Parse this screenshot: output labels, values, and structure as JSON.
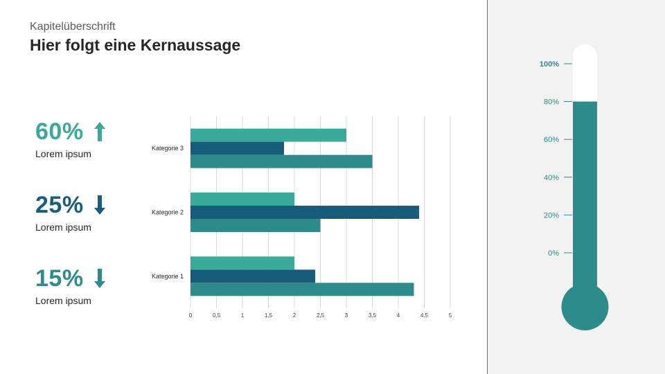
{
  "header": {
    "kicker": "Kapitelüberschrift",
    "headline": "Hier folgt eine Kernaussage"
  },
  "kpis": [
    {
      "value": "60%",
      "direction": "up",
      "label": "Lorem ipsum",
      "color": "#3aa89a",
      "icon": "arrow-up-icon"
    },
    {
      "value": "25%",
      "direction": "down",
      "label": "Lorem ipsum",
      "color": "#1a5c7c",
      "icon": "arrow-down-icon"
    },
    {
      "value": "15%",
      "direction": "down",
      "label": "Lorem ipsum",
      "color": "#2e8b8c",
      "icon": "arrow-down-icon"
    }
  ],
  "chart_data": {
    "type": "bar",
    "orientation": "horizontal",
    "categories": [
      "Kategorie 1",
      "Kategorie 2",
      "Kategorie 3"
    ],
    "series": [
      {
        "values": [
          2,
          2,
          3
        ],
        "color": "#3aaa9b"
      },
      {
        "values": [
          2.4,
          4.4,
          1.8
        ],
        "color": "#175c7b"
      },
      {
        "values": [
          4.3,
          2.5,
          3.5
        ],
        "color": "#2e8b8c"
      }
    ],
    "xlim": [
      0,
      5
    ],
    "xticks": [
      "0",
      "0,5",
      "1",
      "1,5",
      "2",
      "2,5",
      "3",
      "3,5",
      "4",
      "4,5",
      "5"
    ],
    "grid": true
  },
  "thermometer": {
    "value_percent": 80,
    "ticks": [
      "100%",
      "80%",
      "60%",
      "40%",
      "20%",
      "0%"
    ],
    "fill_color": "#2e8b8c"
  }
}
